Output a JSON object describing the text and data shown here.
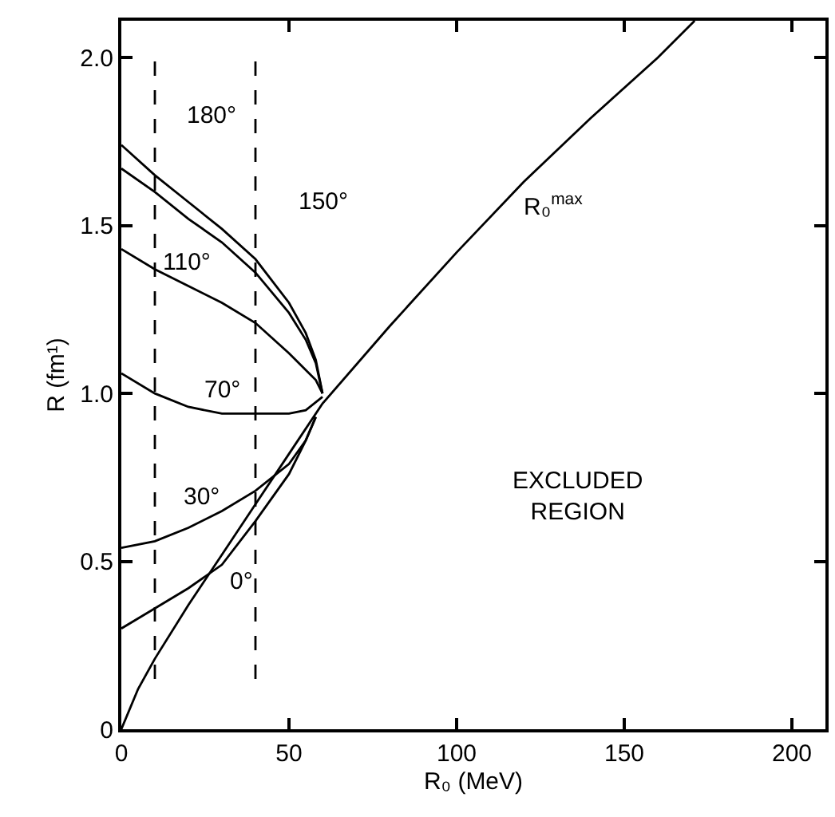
{
  "chart_data": {
    "type": "line",
    "xlabel": "R₀ (MeV)",
    "ylabel": "R (fm¹)",
    "xlim": [
      0,
      210
    ],
    "ylim": [
      0,
      2.11
    ],
    "xticks": [
      0,
      50,
      100,
      150,
      200
    ],
    "yticks": [
      0,
      0.5,
      {
        "value": 1,
        "label": "1.0"
      },
      1.5,
      {
        "value": 2,
        "label": "2.0"
      }
    ],
    "grid": false,
    "marker": "none",
    "series": [
      {
        "color": "#000000",
        "x": [
          0,
          10,
          20,
          30,
          40,
          50,
          55,
          58,
          60
        ],
        "values": [
          1.74,
          1.65,
          1.57,
          1.49,
          1.4,
          1.27,
          1.18,
          1.1,
          1.0
        ]
      },
      {
        "color": "#000000",
        "x": [
          0,
          10,
          20,
          30,
          40,
          50,
          55,
          58,
          60
        ],
        "values": [
          1.67,
          1.6,
          1.52,
          1.45,
          1.36,
          1.24,
          1.16,
          1.09,
          1.0
        ]
      },
      {
        "color": "#000000",
        "x": [
          0,
          10,
          20,
          30,
          40,
          50,
          55,
          58,
          60
        ],
        "values": [
          1.43,
          1.37,
          1.32,
          1.27,
          1.21,
          1.12,
          1.07,
          1.04,
          1.0
        ]
      },
      {
        "color": "#000000",
        "x": [
          0,
          10,
          20,
          30,
          40,
          50,
          55,
          60
        ],
        "values": [
          1.06,
          1.0,
          0.96,
          0.94,
          0.94,
          0.94,
          0.95,
          0.99
        ]
      },
      {
        "color": "#000000",
        "x": [
          0,
          10,
          20,
          30,
          40,
          50,
          55,
          58
        ],
        "values": [
          0.54,
          0.56,
          0.6,
          0.65,
          0.71,
          0.79,
          0.86,
          0.93
        ]
      },
      {
        "color": "#000000",
        "x": [
          0,
          10,
          20,
          30,
          40,
          50,
          55,
          58
        ],
        "values": [
          0.3,
          0.36,
          0.42,
          0.49,
          0.62,
          0.76,
          0.86,
          0.93
        ]
      },
      {
        "color": "#000000",
        "x": [
          0,
          5,
          10,
          20,
          30,
          40,
          50,
          60,
          80,
          100,
          120,
          140,
          160,
          171
        ],
        "values": [
          0,
          0.12,
          0.21,
          0.37,
          0.52,
          0.67,
          0.82,
          0.97,
          1.2,
          1.42,
          1.63,
          1.82,
          2.0,
          2.11
        ]
      },
      {
        "color": "#000000",
        "line_style": "dashed",
        "x": [
          10,
          10
        ],
        "values": [
          0.15,
          2.0
        ]
      },
      {
        "color": "#000000",
        "line_style": "dashed",
        "x": [
          40,
          40
        ],
        "values": [
          0.15,
          2.0
        ]
      }
    ],
    "annotations": [
      "180°",
      "150°",
      "110°",
      "70°",
      "30°",
      "0°",
      "R₀$^{max}$",
      "EXCLUDED\nREGION"
    ]
  }
}
